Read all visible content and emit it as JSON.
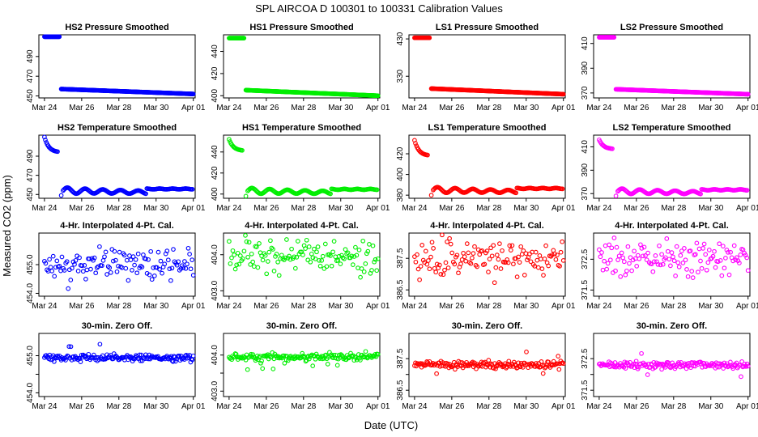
{
  "figure": {
    "title": "SPL    AIRCOA D    100301 to 100331    Calibration Values",
    "xlabel": "Date (UTC)",
    "ylabel": "Measured CO2 (ppm)"
  },
  "colors": {
    "HS2": "#0000ff",
    "HS1": "#00ee00",
    "LS1": "#ff0000",
    "LS2": "#ff00ff"
  },
  "chart_data": [
    {
      "type": "scatter",
      "title": "HS2 Pressure Smoothed",
      "tank": "HS2",
      "kind": "pressure",
      "ylim": [
        448,
        512
      ],
      "yticks": [
        450,
        470,
        490
      ],
      "ytick_labels": [
        "450",
        "470",
        "490"
      ],
      "xlim": [
        23.7,
        32.1
      ],
      "xticks": [
        24,
        26,
        28,
        30,
        32
      ],
      "xtick_labels": [
        "Mar 24",
        "Mar 26",
        "Mar 28",
        "Mar 30",
        "Apr 01"
      ],
      "segments": [
        {
          "x": [
            24.0,
            24.8
          ],
          "y": [
            510,
            510
          ]
        },
        {
          "x": [
            24.9,
            32.0
          ],
          "y": [
            457,
            452
          ]
        }
      ]
    },
    {
      "type": "scatter",
      "title": "HS1 Pressure Smoothed",
      "tank": "HS1",
      "kind": "pressure",
      "ylim": [
        398,
        455
      ],
      "yticks": [
        400,
        420,
        440
      ],
      "ytick_labels": [
        "400",
        "420",
        "440"
      ],
      "xlim": [
        23.7,
        32.1
      ],
      "xticks": [
        24,
        26,
        28,
        30,
        32
      ],
      "xtick_labels": [
        "Mar 24",
        "Mar 26",
        "Mar 28",
        "Mar 30",
        "Apr 01"
      ],
      "segments": [
        {
          "x": [
            24.0,
            24.8
          ],
          "y": [
            452,
            452
          ]
        },
        {
          "x": [
            24.9,
            32.0
          ],
          "y": [
            405,
            400
          ]
        }
      ]
    },
    {
      "type": "scatter",
      "title": "LS1 Pressure Smoothed",
      "tank": "LS1",
      "kind": "pressure",
      "ylim": [
        272,
        441
      ],
      "yticks": [
        330,
        430
      ],
      "ytick_labels": [
        "330",
        "430"
      ],
      "xlim": [
        23.7,
        32.1
      ],
      "xticks": [
        24,
        26,
        28,
        30,
        32
      ],
      "xtick_labels": [
        "Mar 24",
        "Mar 26",
        "Mar 28",
        "Mar 30",
        "Apr 01"
      ],
      "segments": [
        {
          "x": [
            24.0,
            24.8
          ],
          "y": [
            433,
            433
          ]
        },
        {
          "x": [
            24.9,
            32.0
          ],
          "y": [
            297,
            282
          ]
        }
      ]
    },
    {
      "type": "scatter",
      "title": "LS2 Pressure Smoothed",
      "tank": "LS2",
      "kind": "pressure",
      "ylim": [
        366,
        417
      ],
      "yticks": [
        370,
        390,
        410
      ],
      "ytick_labels": [
        "370",
        "390",
        "410"
      ],
      "xlim": [
        23.7,
        32.1
      ],
      "xticks": [
        24,
        26,
        28,
        30,
        32
      ],
      "xtick_labels": [
        "Mar 24",
        "Mar 26",
        "Mar 28",
        "Mar 30",
        "Apr 01"
      ],
      "segments": [
        {
          "x": [
            24.0,
            24.8
          ],
          "y": [
            415,
            415
          ]
        },
        {
          "x": [
            24.9,
            32.0
          ],
          "y": [
            373,
            369
          ]
        }
      ]
    },
    {
      "type": "scatter",
      "title": "HS2 Temperature Smoothed",
      "tank": "HS2",
      "kind": "temperature",
      "ylim": [
        446,
        512
      ],
      "yticks": [
        450,
        470,
        490
      ],
      "ytick_labels": [
        "450",
        "470",
        "490"
      ],
      "xlim": [
        23.7,
        32.1
      ],
      "xticks": [
        24,
        26,
        28,
        30,
        32
      ],
      "xtick_labels": [
        "Mar 24",
        "Mar 26",
        "Mar 28",
        "Mar 30",
        "Apr 01"
      ],
      "decay": {
        "x": [
          24.0,
          24.7
        ],
        "y": [
          510,
          494
        ]
      },
      "baseline": {
        "y": 454,
        "amp": 3.5
      },
      "drop_to": 449
    },
    {
      "type": "scatter",
      "title": "HS1 Temperature Smoothed",
      "tank": "HS1",
      "kind": "temperature",
      "ylim": [
        396,
        456
      ],
      "yticks": [
        400,
        420,
        440
      ],
      "ytick_labels": [
        "400",
        "420",
        "440"
      ],
      "xlim": [
        23.7,
        32.1
      ],
      "xticks": [
        24,
        26,
        28,
        30,
        32
      ],
      "xtick_labels": [
        "Mar 24",
        "Mar 26",
        "Mar 28",
        "Mar 30",
        "Apr 01"
      ],
      "decay": {
        "x": [
          24.0,
          24.7
        ],
        "y": [
          452,
          441
        ]
      },
      "baseline": {
        "y": 403,
        "amp": 3
      },
      "drop_to": 398
    },
    {
      "type": "scatter",
      "title": "LS1 Temperature Smoothed",
      "tank": "LS1",
      "kind": "temperature",
      "ylim": [
        377,
        438
      ],
      "yticks": [
        380,
        400,
        420
      ],
      "ytick_labels": [
        "380",
        "400",
        "420"
      ],
      "xlim": [
        23.7,
        32.1
      ],
      "xticks": [
        24,
        26,
        28,
        30,
        32
      ],
      "xtick_labels": [
        "Mar 24",
        "Mar 26",
        "Mar 28",
        "Mar 30",
        "Apr 01"
      ],
      "decay": {
        "x": [
          24.0,
          24.7
        ],
        "y": [
          433,
          418
        ]
      },
      "baseline": {
        "y": 385,
        "amp": 3
      },
      "drop_to": 380
    },
    {
      "type": "scatter",
      "title": "LS2 Temperature Smoothed",
      "tank": "LS2",
      "kind": "temperature",
      "ylim": [
        366,
        420
      ],
      "yticks": [
        370,
        390,
        410
      ],
      "ytick_labels": [
        "370",
        "390",
        "410"
      ],
      "xlim": [
        23.7,
        32.1
      ],
      "xticks": [
        24,
        26,
        28,
        30,
        32
      ],
      "xtick_labels": [
        "Mar 24",
        "Mar 26",
        "Mar 28",
        "Mar 30",
        "Apr 01"
      ],
      "decay": {
        "x": [
          24.0,
          24.7
        ],
        "y": [
          416,
          408
        ]
      },
      "baseline": {
        "y": 372,
        "amp": 2.5
      },
      "drop_to": 368
    },
    {
      "type": "scatter",
      "title": "4-Hr. Interpolated 4-Pt. Cal.",
      "tank": "HS2",
      "kind": "cal4pt",
      "ylim": [
        453.9,
        456.1
      ],
      "yticks": [
        454.0,
        455.0
      ],
      "ytick_labels": [
        "454.0",
        "455.0"
      ],
      "xlim": [
        23.7,
        32.1
      ],
      "xticks": [
        24,
        26,
        28,
        30,
        32
      ],
      "xtick_labels": [
        "Mar 24",
        "Mar 26",
        "Mar 28",
        "Mar 30",
        "Apr 01"
      ],
      "center": 455.0,
      "spread": 0.35,
      "n": 120,
      "seed": 11
    },
    {
      "type": "scatter",
      "title": "4-Hr. Interpolated 4-Pt. Cal.",
      "tank": "HS1",
      "kind": "cal4pt",
      "ylim": [
        402.85,
        404.6
      ],
      "yticks": [
        403.0,
        404.0
      ],
      "ytick_labels": [
        "403.0",
        "404.0"
      ],
      "xlim": [
        23.7,
        32.1
      ],
      "xticks": [
        24,
        26,
        28,
        30,
        32
      ],
      "xtick_labels": [
        "Mar 24",
        "Mar 26",
        "Mar 28",
        "Mar 30",
        "Apr 01"
      ],
      "center": 403.95,
      "spread": 0.3,
      "n": 120,
      "seed": 23
    },
    {
      "type": "scatter",
      "title": "4-Hr. Interpolated 4-Pt. Cal.",
      "tank": "LS1",
      "kind": "cal4pt",
      "ylim": [
        386.3,
        388.3
      ],
      "yticks": [
        386.5,
        387.5
      ],
      "ytick_labels": [
        "386.5",
        "387.5"
      ],
      "xlim": [
        23.7,
        32.1
      ],
      "xticks": [
        24,
        26,
        28,
        30,
        32
      ],
      "xtick_labels": [
        "Mar 24",
        "Mar 26",
        "Mar 28",
        "Mar 30",
        "Apr 01"
      ],
      "center": 387.5,
      "spread": 0.35,
      "n": 120,
      "seed": 37
    },
    {
      "type": "scatter",
      "title": "4-Hr. Interpolated 4-Pt. Cal.",
      "tank": "LS2",
      "kind": "cal4pt",
      "ylim": [
        371.3,
        373.35
      ],
      "yticks": [
        371.5,
        372.5
      ],
      "ytick_labels": [
        "371.5",
        "372.5"
      ],
      "xlim": [
        23.7,
        32.1
      ],
      "xticks": [
        24,
        26,
        28,
        30,
        32
      ],
      "xtick_labels": [
        "Mar 24",
        "Mar 26",
        "Mar 28",
        "Mar 30",
        "Apr 01"
      ],
      "center": 372.5,
      "spread": 0.35,
      "n": 120,
      "seed": 41
    },
    {
      "type": "scatter",
      "title": "30-min. Zero Off.",
      "tank": "HS2",
      "kind": "zero",
      "ylim": [
        453.9,
        455.6
      ],
      "yticks": [
        454.0,
        454.5,
        455.0
      ],
      "ytick_labels": [
        "454.0",
        "",
        "455.0"
      ],
      "xlim": [
        23.7,
        32.1
      ],
      "xticks": [
        24,
        26,
        28,
        30,
        32
      ],
      "xtick_labels": [
        "Mar 24",
        "Mar 26",
        "Mar 28",
        "Mar 30",
        "Apr 01"
      ],
      "center": 454.95,
      "spread": 0.06,
      "n": 170,
      "seed": 5
    },
    {
      "type": "scatter",
      "title": "30-min. Zero Off.",
      "tank": "HS1",
      "kind": "zero",
      "ylim": [
        402.85,
        404.6
      ],
      "yticks": [
        403.0,
        403.5,
        404.0
      ],
      "ytick_labels": [
        "403.0",
        "",
        "404.0"
      ],
      "xlim": [
        23.7,
        32.1
      ],
      "xticks": [
        24,
        26,
        28,
        30,
        32
      ],
      "xtick_labels": [
        "Mar 24",
        "Mar 26",
        "Mar 28",
        "Mar 30",
        "Apr 01"
      ],
      "center": 403.95,
      "spread": 0.06,
      "n": 170,
      "seed": 7
    },
    {
      "type": "scatter",
      "title": "30-min. Zero Off.",
      "tank": "LS1",
      "kind": "zero",
      "ylim": [
        386.3,
        388.3
      ],
      "yticks": [
        386.5,
        387.0,
        387.5
      ],
      "ytick_labels": [
        "386.5",
        "",
        "387.5"
      ],
      "xlim": [
        23.7,
        32.1
      ],
      "xticks": [
        24,
        26,
        28,
        30,
        32
      ],
      "xtick_labels": [
        "Mar 24",
        "Mar 26",
        "Mar 28",
        "Mar 30",
        "Apr 01"
      ],
      "center": 387.3,
      "spread": 0.07,
      "n": 170,
      "seed": 9
    },
    {
      "type": "scatter",
      "title": "30-min. Zero Off.",
      "tank": "LS2",
      "kind": "zero",
      "ylim": [
        371.3,
        373.3
      ],
      "yticks": [
        371.5,
        372.0,
        372.5
      ],
      "ytick_labels": [
        "371.5",
        "",
        "372.5"
      ],
      "xlim": [
        23.7,
        32.1
      ],
      "xticks": [
        24,
        26,
        28,
        30,
        32
      ],
      "xtick_labels": [
        "Mar 24",
        "Mar 26",
        "Mar 28",
        "Mar 30",
        "Apr 01"
      ],
      "center": 372.3,
      "spread": 0.07,
      "n": 170,
      "seed": 13
    }
  ]
}
